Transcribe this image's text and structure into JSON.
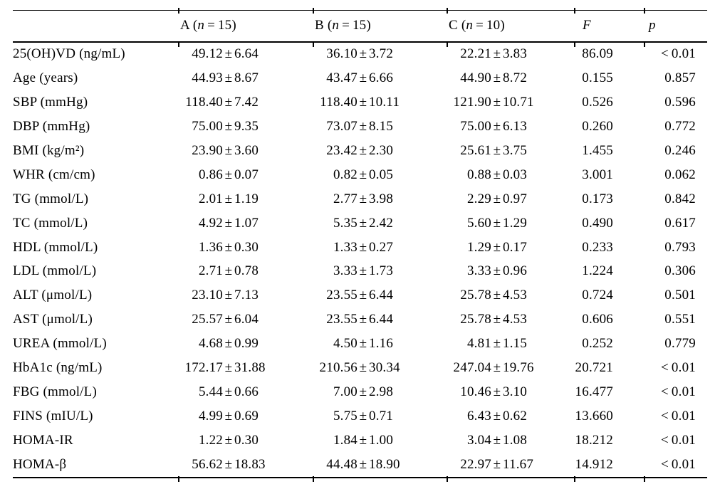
{
  "page": {
    "background": "#ffffff",
    "text_color": "#000000",
    "rule_color": "#000000"
  },
  "table": {
    "pm_symbol": "±",
    "columns": [
      {
        "key": "label",
        "header": {
          "text": ""
        }
      },
      {
        "key": "a",
        "header": {
          "prefix": "A (",
          "n": "n",
          "suffix": " = 15)"
        }
      },
      {
        "key": "b",
        "header": {
          "prefix": "B (",
          "n": "n",
          "suffix": " = 15)"
        }
      },
      {
        "key": "c",
        "header": {
          "prefix": "C (",
          "n": "n",
          "suffix": " = 10)"
        }
      },
      {
        "key": "f",
        "header": {
          "italic": "F"
        }
      },
      {
        "key": "p",
        "header": {
          "italic": "p"
        }
      }
    ],
    "rows": [
      {
        "label": "25(OH)VD (ng/mL)",
        "a_mean": "49.12",
        "a_sd": "6.64",
        "b_mean": "36.10",
        "b_sd": "3.72",
        "c_mean": "22.21",
        "c_sd": "3.83",
        "f": "86.09",
        "p": "< 0.01"
      },
      {
        "label": "Age (years)",
        "a_mean": "44.93",
        "a_sd": "8.67",
        "b_mean": "43.47",
        "b_sd": "6.66",
        "c_mean": "44.90",
        "c_sd": "8.72",
        "f": "0.155",
        "p": "0.857"
      },
      {
        "label": "SBP (mmHg)",
        "a_mean": "118.40",
        "a_sd": "7.42",
        "b_mean": "118.40",
        "b_sd": "10.11",
        "c_mean": "121.90",
        "c_sd": "10.71",
        "f": "0.526",
        "p": "0.596"
      },
      {
        "label": "DBP (mmHg)",
        "a_mean": "75.00",
        "a_sd": "9.35",
        "b_mean": "73.07",
        "b_sd": "8.15",
        "c_mean": "75.00",
        "c_sd": "6.13",
        "f": "0.260",
        "p": "0.772"
      },
      {
        "label": "BMI (kg/m²)",
        "a_mean": "23.90",
        "a_sd": "3.60",
        "b_mean": "23.42",
        "b_sd": "2.30",
        "c_mean": "25.61",
        "c_sd": "3.75",
        "f": "1.455",
        "p": "0.246"
      },
      {
        "label": "WHR (cm/cm)",
        "a_mean": "0.86",
        "a_sd": "0.07",
        "b_mean": "0.82",
        "b_sd": "0.05",
        "c_mean": "0.88",
        "c_sd": "0.03",
        "f": "3.001",
        "p": "0.062"
      },
      {
        "label": "TG (mmol/L)",
        "a_mean": "2.01",
        "a_sd": "1.19",
        "b_mean": "2.77",
        "b_sd": "3.98",
        "c_mean": "2.29",
        "c_sd": "0.97",
        "f": "0.173",
        "p": "0.842"
      },
      {
        "label": "TC (mmol/L)",
        "a_mean": "4.92",
        "a_sd": "1.07",
        "b_mean": "5.35",
        "b_sd": "2.42",
        "c_mean": "5.60",
        "c_sd": "1.29",
        "f": "0.490",
        "p": "0.617"
      },
      {
        "label": "HDL (mmol/L)",
        "a_mean": "1.36",
        "a_sd": "0.30",
        "b_mean": "1.33",
        "b_sd": "0.27",
        "c_mean": "1.29",
        "c_sd": "0.17",
        "f": "0.233",
        "p": "0.793"
      },
      {
        "label": "LDL (mmol/L)",
        "a_mean": "2.71",
        "a_sd": "0.78",
        "b_mean": "3.33",
        "b_sd": "1.73",
        "c_mean": "3.33",
        "c_sd": "0.96",
        "f": "1.224",
        "p": "0.306"
      },
      {
        "label": "ALT (μmol/L)",
        "a_mean": "23.10",
        "a_sd": "7.13",
        "b_mean": "23.55",
        "b_sd": "6.44",
        "c_mean": "25.78",
        "c_sd": "4.53",
        "f": "0.724",
        "p": "0.501"
      },
      {
        "label": "AST (μmol/L)",
        "a_mean": "25.57",
        "a_sd": "6.04",
        "b_mean": "23.55",
        "b_sd": "6.44",
        "c_mean": "25.78",
        "c_sd": "4.53",
        "f": "0.606",
        "p": "0.551"
      },
      {
        "label": "UREA (mmol/L)",
        "a_mean": "4.68",
        "a_sd": "0.99",
        "b_mean": "4.50",
        "b_sd": "1.16",
        "c_mean": "4.81",
        "c_sd": "1.15",
        "f": "0.252",
        "p": "0.779"
      },
      {
        "label": "HbA1c (ng/mL)",
        "a_mean": "172.17",
        "a_sd": "31.88",
        "b_mean": "210.56",
        "b_sd": "30.34",
        "c_mean": "247.04",
        "c_sd": "19.76",
        "f": "20.721",
        "p": "< 0.01"
      },
      {
        "label": "FBG (mmol/L)",
        "a_mean": "5.44",
        "a_sd": "0.66",
        "b_mean": "7.00",
        "b_sd": "2.98",
        "c_mean": "10.46",
        "c_sd": "3.10",
        "f": "16.477",
        "p": "< 0.01"
      },
      {
        "label": "FINS (mIU/L)",
        "a_mean": "4.99",
        "a_sd": "0.69",
        "b_mean": "5.75",
        "b_sd": "0.71",
        "c_mean": "6.43",
        "c_sd": "0.62",
        "f": "13.660",
        "p": "< 0.01"
      },
      {
        "label": "HOMA-IR",
        "a_mean": "1.22",
        "a_sd": "0.30",
        "b_mean": "1.84",
        "b_sd": "1.00",
        "c_mean": "3.04",
        "c_sd": "1.08",
        "f": "18.212",
        "p": "< 0.01"
      },
      {
        "label": "HOMA-β",
        "a_mean": "56.62",
        "a_sd": "18.83",
        "b_mean": "44.48",
        "b_sd": "18.90",
        "c_mean": "22.97",
        "c_sd": "11.67",
        "f": "14.912",
        "p": "< 0.01"
      }
    ]
  }
}
